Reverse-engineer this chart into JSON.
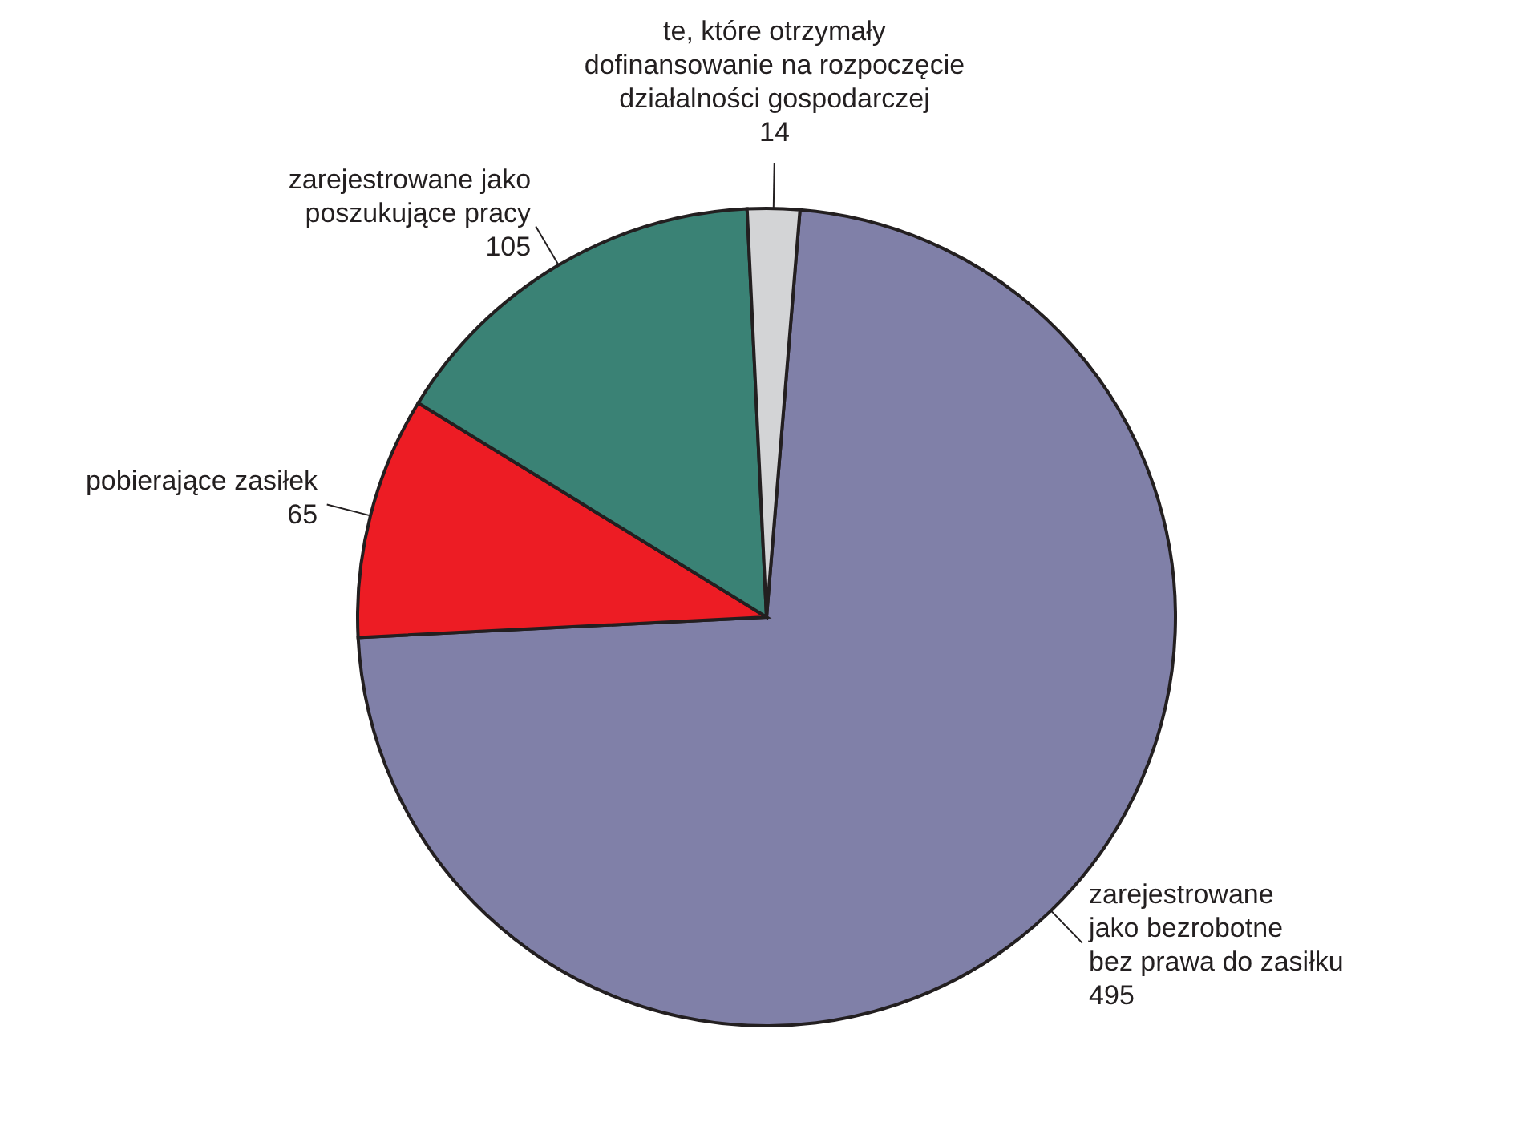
{
  "chart_data": {
    "type": "pie",
    "categories": [
      "zarejestrowane\njako bezrobotne\nbez prawa do zasiłku",
      "pobierające zasiłek",
      "zarejestrowane jako\nposzukujące pracy",
      "te, które otrzymały\ndofinansowanie na rozpoczęcie\ndziałalności gospodarczej"
    ],
    "values": [
      495,
      65,
      105,
      14
    ],
    "colors": [
      "#8080a8",
      "#ed1c24",
      "#3a8275",
      "#d3d4d6"
    ],
    "data_labels": true
  }
}
